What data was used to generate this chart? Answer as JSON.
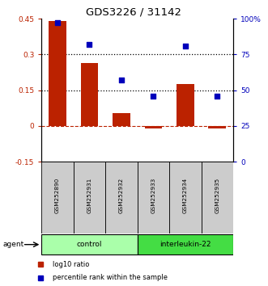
{
  "title": "GDS3226 / 31142",
  "samples": [
    "GSM252890",
    "GSM252931",
    "GSM252932",
    "GSM252933",
    "GSM252934",
    "GSM252935"
  ],
  "log10_ratio": [
    0.44,
    0.265,
    0.055,
    -0.012,
    0.175,
    -0.012
  ],
  "percentile_rank": [
    97,
    82,
    57,
    46,
    81,
    46
  ],
  "bar_color": "#BB2200",
  "dot_color": "#0000BB",
  "ylim_left": [
    -0.15,
    0.45
  ],
  "ylim_right": [
    0,
    100
  ],
  "yticks_left": [
    -0.15,
    0,
    0.15,
    0.3,
    0.45
  ],
  "yticks_right": [
    0,
    25,
    50,
    75,
    100
  ],
  "ytick_labels_left": [
    "-0.15",
    "0",
    "0.15",
    "0.3",
    "0.45"
  ],
  "ytick_labels_right": [
    "0",
    "25",
    "50",
    "75",
    "100%"
  ],
  "hlines": [
    0.15,
    0.3
  ],
  "groups_info": [
    {
      "label": "control",
      "start": 0,
      "end": 2,
      "color": "#AAFFAA"
    },
    {
      "label": "interleukin-22",
      "start": 3,
      "end": 5,
      "color": "#44DD44"
    }
  ],
  "legend_items": [
    {
      "label": "log10 ratio",
      "color": "#BB2200"
    },
    {
      "label": "percentile rank within the sample",
      "color": "#0000BB"
    }
  ],
  "agent_label": "agent",
  "background_color": "#ffffff"
}
